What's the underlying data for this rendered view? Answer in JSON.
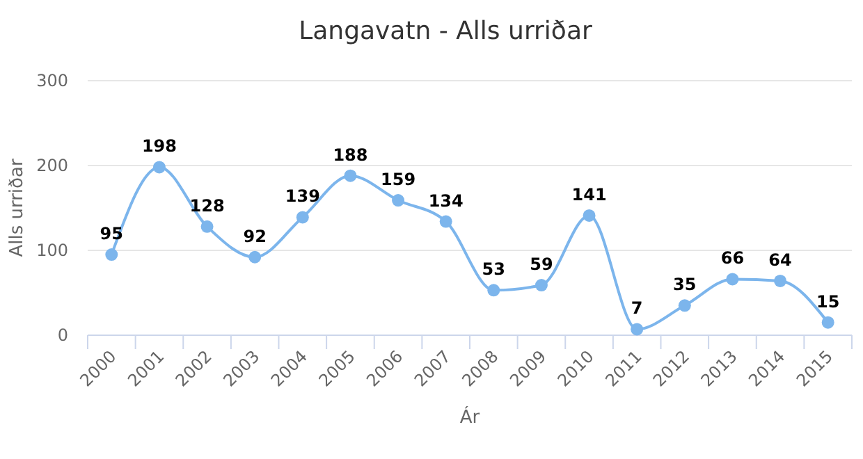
{
  "chart_data": {
    "type": "line",
    "title": "Langavatn - Alls urriðar",
    "xlabel": "Ár",
    "ylabel": "Alls urriðar",
    "categories": [
      "2000",
      "2001",
      "2002",
      "2003",
      "2004",
      "2005",
      "2006",
      "2007",
      "2008",
      "2009",
      "2010",
      "2011",
      "2012",
      "2013",
      "2014",
      "2015"
    ],
    "series": [
      {
        "color": "#7cb5ec",
        "values": [
          95,
          198,
          128,
          92,
          139,
          188,
          159,
          134,
          53,
          59,
          141,
          7,
          35,
          66,
          64,
          15
        ]
      }
    ],
    "ylim": [
      0,
      300
    ],
    "yticks": [
      0,
      100,
      200,
      300
    ],
    "grid": "y",
    "marker": "circle",
    "line_style": "solid",
    "data_labels": true
  }
}
